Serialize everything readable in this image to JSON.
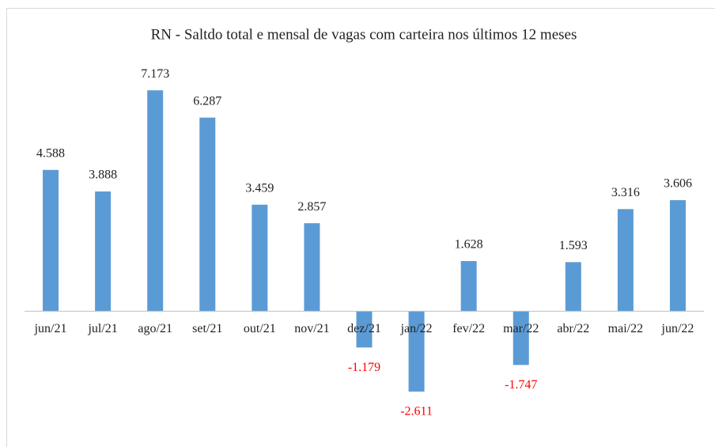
{
  "chart_data": {
    "type": "bar",
    "title": "RN - Saltdo total e mensal de vagas com carteira nos últimos 12 meses",
    "categories": [
      "jun/21",
      "jul/21",
      "ago/21",
      "set/21",
      "out/21",
      "nov/21",
      "dez/21",
      "jan/22",
      "fev/22",
      "mar/22",
      "abr/22",
      "mai/22",
      "jun/22"
    ],
    "values": [
      4588,
      3888,
      7173,
      6287,
      3459,
      2857,
      -1179,
      -2611,
      1628,
      -1747,
      1593,
      3316,
      3606
    ],
    "value_labels": [
      "4.588",
      "3.888",
      "7.173",
      "6.287",
      "3.459",
      "2.857",
      "-1.179",
      "-2.611",
      "1.628",
      "-1.747",
      "1.593",
      "3.316",
      "3.606"
    ],
    "color": "#5b9bd5",
    "label_color": "#222222",
    "negative_label_color": "#ff0000",
    "ylim": [
      -4000,
      8000
    ]
  }
}
